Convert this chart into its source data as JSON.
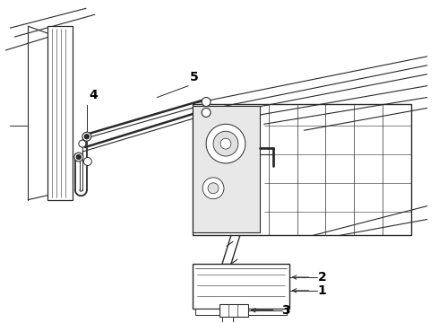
{
  "background_color": "#ffffff",
  "line_color": "#2a2a2a",
  "label_color": "#000000",
  "figsize": [
    4.9,
    3.6
  ],
  "dpi": 100,
  "label_fontsize": 10,
  "label_fontweight": "bold"
}
